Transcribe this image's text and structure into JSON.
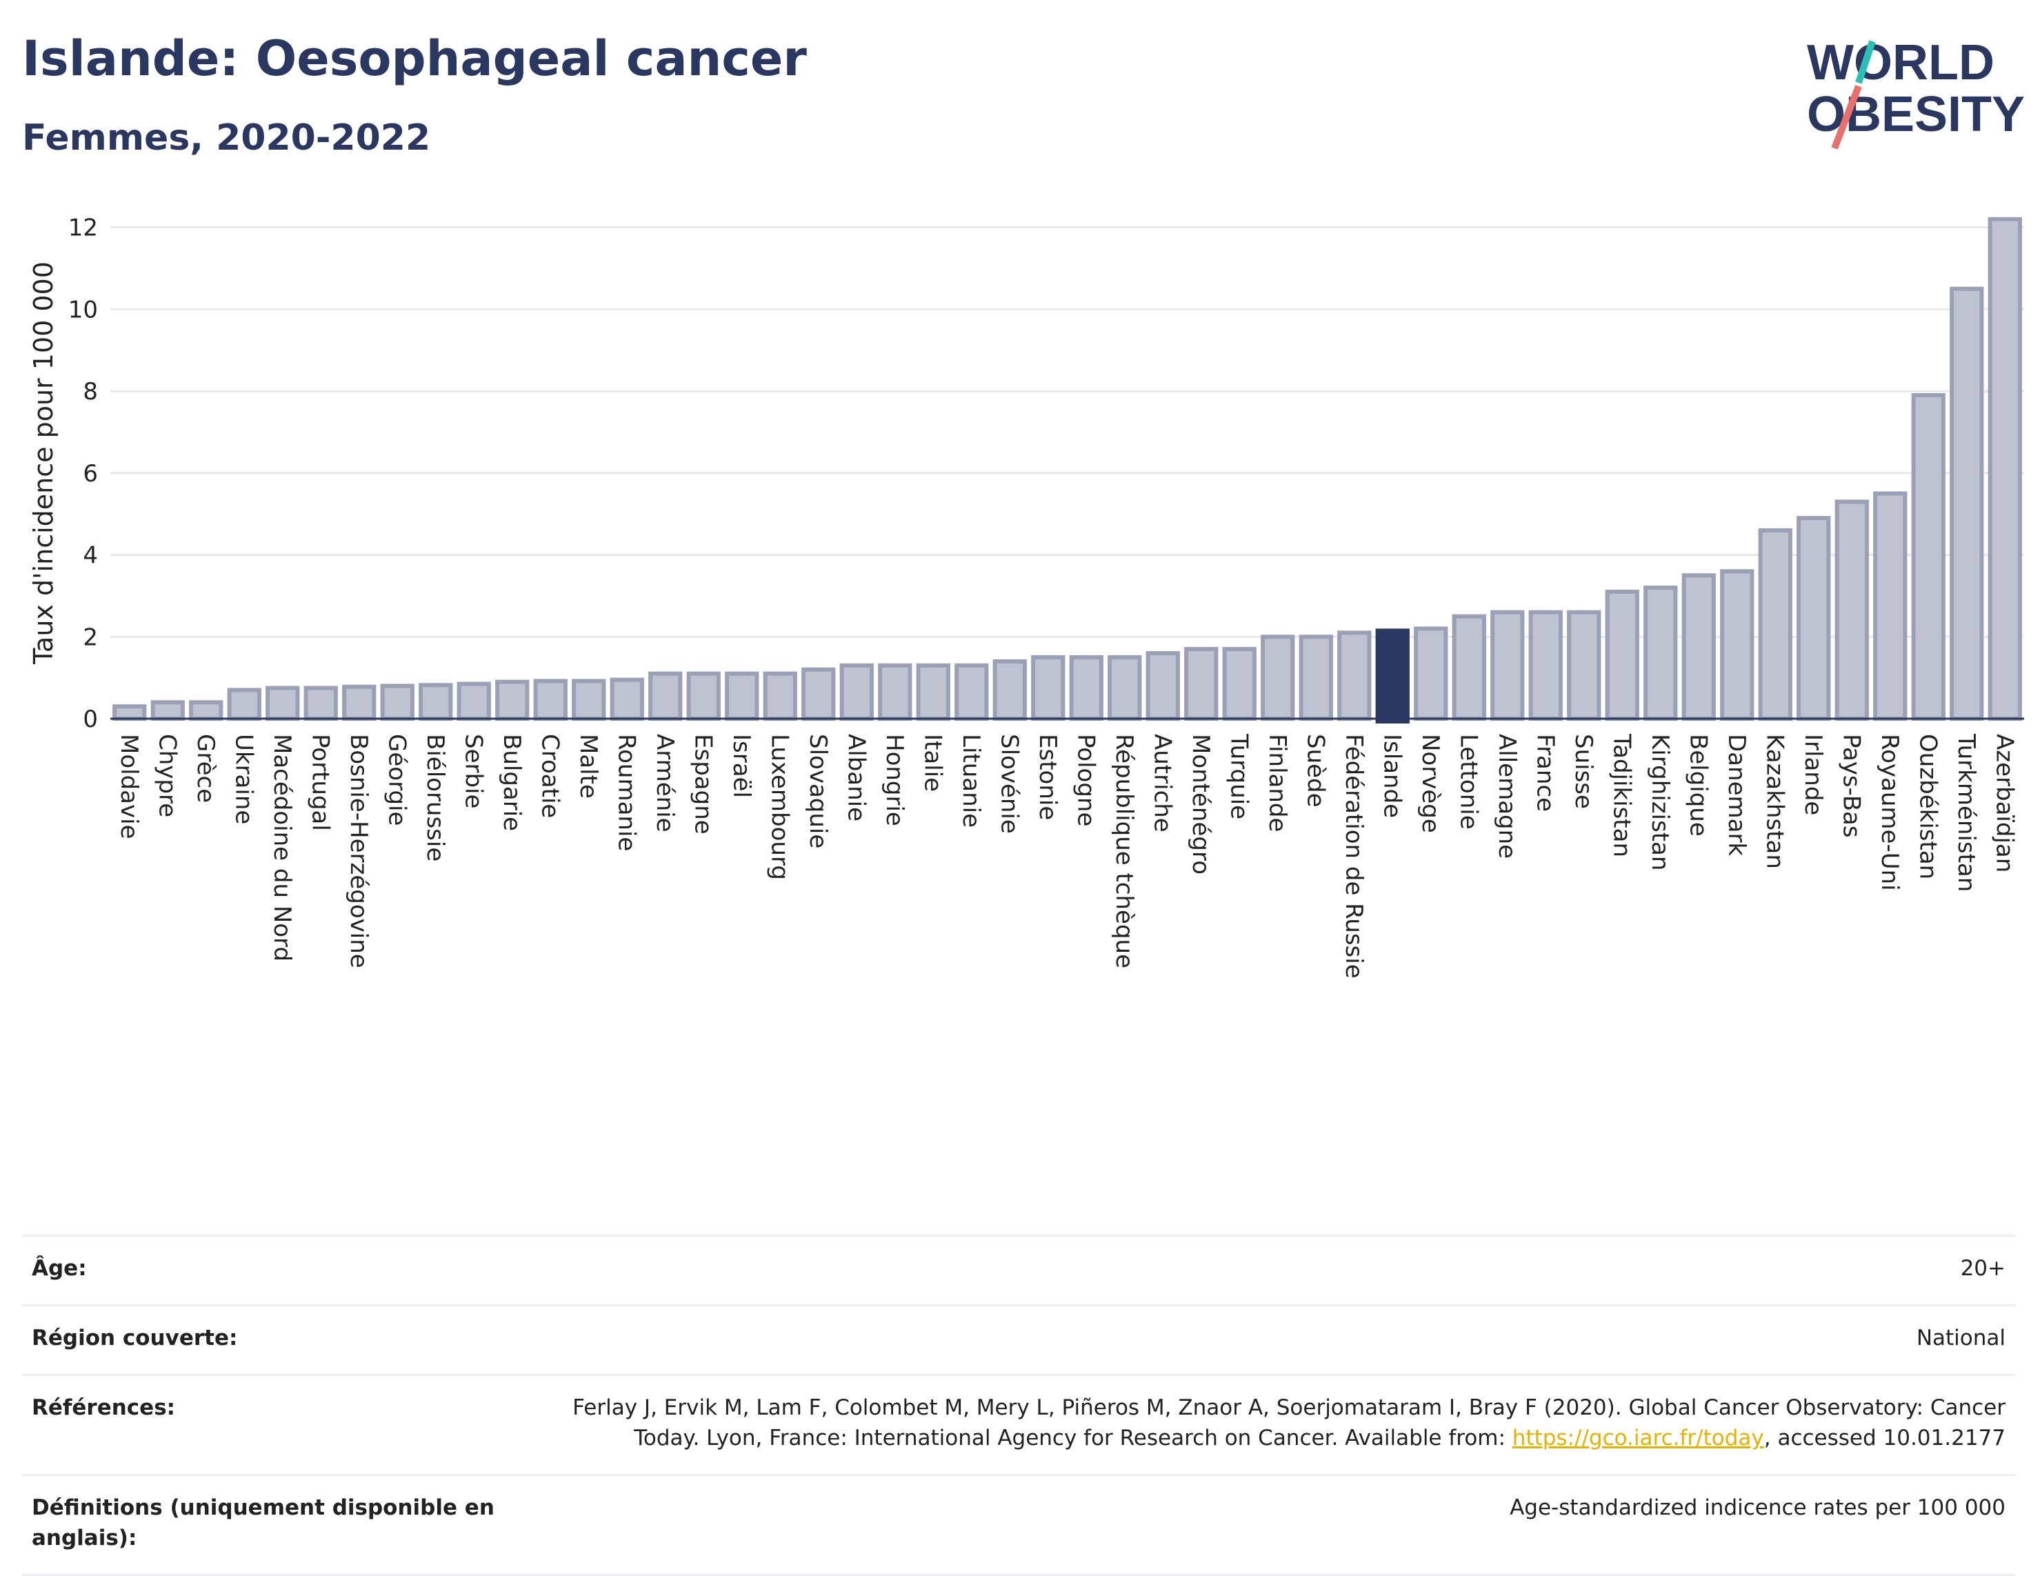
{
  "header": {
    "title": "Islande: Oesophageal cancer",
    "subtitle": "Femmes, 2020-2022",
    "logo_line1": "WORLD",
    "logo_line2": "OBESITY"
  },
  "colors": {
    "title": "#2a3760",
    "bar_fill": "#bfc3d1",
    "bar_stroke": "#9aa0b6",
    "highlight": "#2a3760",
    "grid": "#e6e8ee",
    "logo_teal": "#2bbfb5",
    "logo_coral": "#e8706a",
    "link": "#e8b000"
  },
  "chart_data": {
    "type": "bar",
    "title": "Islande: Oesophageal cancer",
    "subtitle": "Femmes, 2020-2022",
    "ylabel": "Taux d'incidence pour 100 000",
    "xlabel": "",
    "ylim": [
      0,
      12.5
    ],
    "yticks": [
      0,
      2,
      4,
      6,
      8,
      10,
      12
    ],
    "grid": true,
    "highlight": "Islande",
    "categories": [
      "Moldavie",
      "Chypre",
      "Grèce",
      "Ukraine",
      "Macédoine du Nord",
      "Portugal",
      "Bosnie-Herzégovine",
      "Géorgie",
      "Biélorussie",
      "Serbie",
      "Bulgarie",
      "Croatie",
      "Malte",
      "Roumanie",
      "Arménie",
      "Espagne",
      "Israël",
      "Luxembourg",
      "Slovaquie",
      "Albanie",
      "Hongrie",
      "Italie",
      "Lituanie",
      "Slovénie",
      "Estonie",
      "Pologne",
      "République tchèque",
      "Autriche",
      "Monténégro",
      "Turquie",
      "Finlande",
      "Suède",
      "Fédération de Russie",
      "Islande",
      "Norvège",
      "Lettonie",
      "Allemagne",
      "France",
      "Suisse",
      "Tadjikistan",
      "Kirghizistan",
      "Belgique",
      "Danemark",
      "Kazakhstan",
      "Irlande",
      "Pays-Bas",
      "Royaume-Uni",
      "Ouzbékistan",
      "Turkménistan",
      "Azerbaïdjan"
    ],
    "values": [
      0.3,
      0.4,
      0.4,
      0.7,
      0.75,
      0.75,
      0.78,
      0.8,
      0.82,
      0.85,
      0.9,
      0.92,
      0.92,
      0.95,
      1.1,
      1.1,
      1.1,
      1.1,
      1.2,
      1.3,
      1.3,
      1.3,
      1.3,
      1.4,
      1.5,
      1.5,
      1.5,
      1.6,
      1.7,
      1.7,
      2.0,
      2.0,
      2.1,
      2.15,
      2.2,
      2.5,
      2.6,
      2.6,
      2.6,
      3.1,
      3.2,
      3.5,
      3.6,
      4.6,
      4.9,
      5.3,
      5.5,
      7.9,
      10.5,
      12.2
    ]
  },
  "info": {
    "rows": [
      {
        "label": "Âge:",
        "value": "20+"
      },
      {
        "label": "Région couverte:",
        "value": "National"
      },
      {
        "label": "Références:",
        "value_pre": "Ferlay J, Ervik M, Lam F, Colombet M, Mery L, Piñeros M, Znaor A, Soerjomataram I, Bray F (2020). Global Cancer Observatory: Cancer Today. Lyon, France: International Agency for Research on Cancer. Available from: ",
        "link": "https://gco.iarc.fr/today",
        "value_post": ", accessed 10.01.2177"
      },
      {
        "label": "Définitions (uniquement disponible en anglais):",
        "value": "Age-standardized indicence rates per 100 000"
      }
    ]
  }
}
